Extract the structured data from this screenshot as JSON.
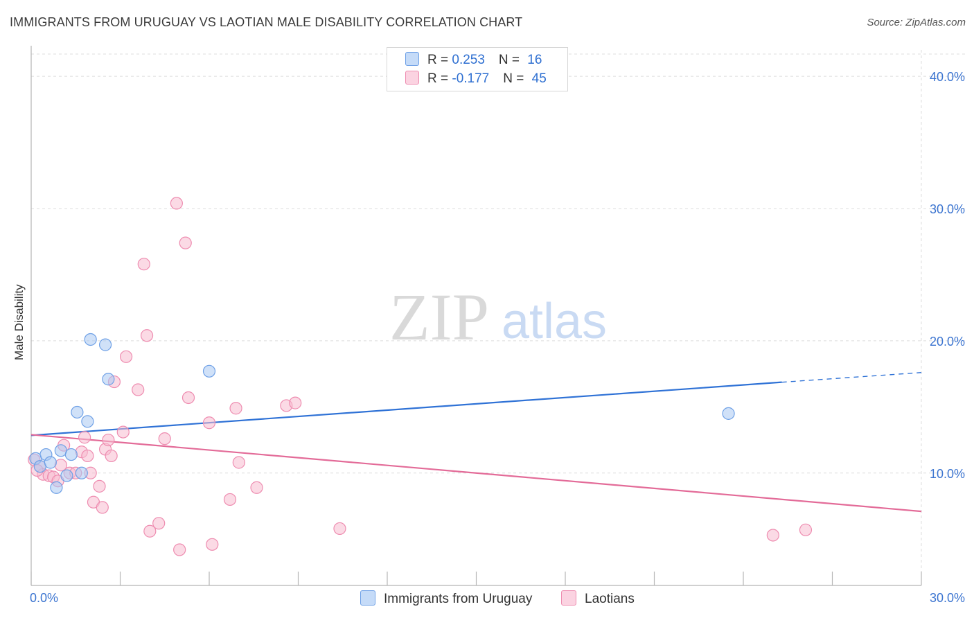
{
  "header": {
    "title": "IMMIGRANTS FROM URUGUAY VS LAOTIAN MALE DISABILITY CORRELATION CHART",
    "source": "Source: ZipAtlas.com"
  },
  "watermark": {
    "zip": "ZIP",
    "atlas": "atlas"
  },
  "legend": {
    "rows": [
      {
        "r_label": "R = ",
        "r_value": "0.253",
        "n_label": "N = ",
        "n_value": "16",
        "color": "#aac8f3"
      },
      {
        "r_label": "R = ",
        "r_value": "-0.177",
        "n_label": "N = ",
        "n_value": "45",
        "color": "#f7bcd0"
      }
    ]
  },
  "bottom_legend": {
    "items": [
      {
        "label": "Immigrants from Uruguay",
        "color": "#aac8f3"
      },
      {
        "label": "Laotians",
        "color": "#f7bcd0"
      }
    ]
  },
  "chart_data": {
    "type": "scatter",
    "title": "IMMIGRANTS FROM URUGUAY VS LAOTIAN MALE DISABILITY CORRELATION CHART",
    "xlabel": "",
    "ylabel": "Male Disability",
    "xlim": [
      0,
      30
    ],
    "ylim": [
      1.5,
      42
    ],
    "x_tick_labels": [
      "0.0%",
      "30.0%"
    ],
    "y_ticks": [
      10,
      20,
      30,
      40
    ],
    "y_tick_labels": [
      "10.0%",
      "20.0%",
      "30.0%",
      "40.0%"
    ],
    "grid": true,
    "series": [
      {
        "name": "Immigrants from Uruguay",
        "color": "#6ea0e6",
        "fill": "#aac8f3",
        "points": [
          [
            0.15,
            11.1
          ],
          [
            0.3,
            10.5
          ],
          [
            0.5,
            11.4
          ],
          [
            0.65,
            10.8
          ],
          [
            0.85,
            8.9
          ],
          [
            1.0,
            11.7
          ],
          [
            1.2,
            9.8
          ],
          [
            1.35,
            11.4
          ],
          [
            1.55,
            14.6
          ],
          [
            1.7,
            10.0
          ],
          [
            1.9,
            13.9
          ],
          [
            2.0,
            20.1
          ],
          [
            2.5,
            19.7
          ],
          [
            2.6,
            17.1
          ],
          [
            6.0,
            17.7
          ],
          [
            23.5,
            14.5
          ]
        ],
        "trend": {
          "x_start": 0,
          "y_start": 12.85,
          "x_solid_end": 25.3,
          "y_solid_end": 16.87,
          "x_dash_end": 30,
          "y_dash_end": 17.6
        }
      },
      {
        "name": "Laotians",
        "color": "#ee8cb0",
        "fill": "#f7bcd0",
        "points": [
          [
            0.1,
            11.0
          ],
          [
            0.3,
            10.5
          ],
          [
            0.4,
            9.9
          ],
          [
            0.6,
            9.8
          ],
          [
            0.75,
            9.7
          ],
          [
            0.9,
            9.4
          ],
          [
            1.0,
            10.6
          ],
          [
            1.1,
            12.1
          ],
          [
            1.3,
            10.0
          ],
          [
            1.5,
            10.0
          ],
          [
            1.7,
            11.6
          ],
          [
            1.8,
            12.7
          ],
          [
            1.9,
            11.3
          ],
          [
            2.0,
            10.0
          ],
          [
            2.1,
            7.8
          ],
          [
            2.3,
            9.0
          ],
          [
            2.4,
            7.4
          ],
          [
            2.5,
            11.8
          ],
          [
            2.6,
            12.5
          ],
          [
            2.7,
            11.3
          ],
          [
            2.8,
            16.9
          ],
          [
            3.1,
            13.1
          ],
          [
            3.2,
            18.8
          ],
          [
            3.6,
            16.3
          ],
          [
            3.8,
            25.8
          ],
          [
            3.9,
            20.4
          ],
          [
            4.0,
            5.6
          ],
          [
            4.3,
            6.2
          ],
          [
            4.5,
            12.6
          ],
          [
            4.9,
            30.4
          ],
          [
            5.0,
            4.2
          ],
          [
            5.2,
            27.4
          ],
          [
            5.3,
            15.7
          ],
          [
            6.0,
            13.8
          ],
          [
            6.1,
            4.6
          ],
          [
            6.7,
            8.0
          ],
          [
            6.9,
            14.9
          ],
          [
            7.0,
            10.8
          ],
          [
            7.6,
            8.9
          ],
          [
            8.6,
            15.1
          ],
          [
            8.9,
            15.3
          ],
          [
            10.4,
            5.8
          ],
          [
            25.0,
            5.3
          ],
          [
            26.1,
            5.7
          ],
          [
            0.2,
            10.2
          ]
        ],
        "trend": {
          "x_start": 0,
          "y_start": 12.9,
          "x_end": 30,
          "y_end": 7.1
        }
      }
    ]
  }
}
